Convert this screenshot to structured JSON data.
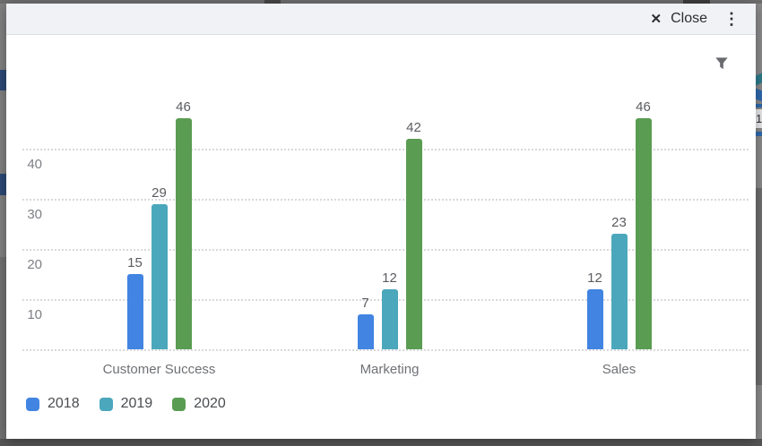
{
  "backdrop": {
    "fragment_text": "1",
    "overlay_color": "#828282",
    "navy_color": "#2c4a78",
    "line_blue": "#2f6bb0",
    "line_teal": "#2e7d8c"
  },
  "modal": {
    "header": {
      "close_label": "Close",
      "close_icon": "✕",
      "menu_icon": "⋮"
    },
    "filter_icon": "funnel-icon"
  },
  "chart_data": {
    "type": "bar",
    "title": "",
    "categories": [
      "Customer Success",
      "Marketing",
      "Sales"
    ],
    "series": [
      {
        "name": "2018",
        "color": "#4184E2",
        "values": [
          15,
          7,
          12
        ]
      },
      {
        "name": "2019",
        "color": "#4BA7BC",
        "values": [
          29,
          12,
          23
        ]
      },
      {
        "name": "2020",
        "color": "#5A9C52",
        "values": [
          46,
          42,
          46
        ]
      }
    ],
    "y_ticks": [
      10,
      20,
      30,
      40
    ],
    "ylim": [
      0,
      50
    ],
    "grid_style": "dotted",
    "data_labels": true,
    "legend_position": "bottom-left"
  }
}
